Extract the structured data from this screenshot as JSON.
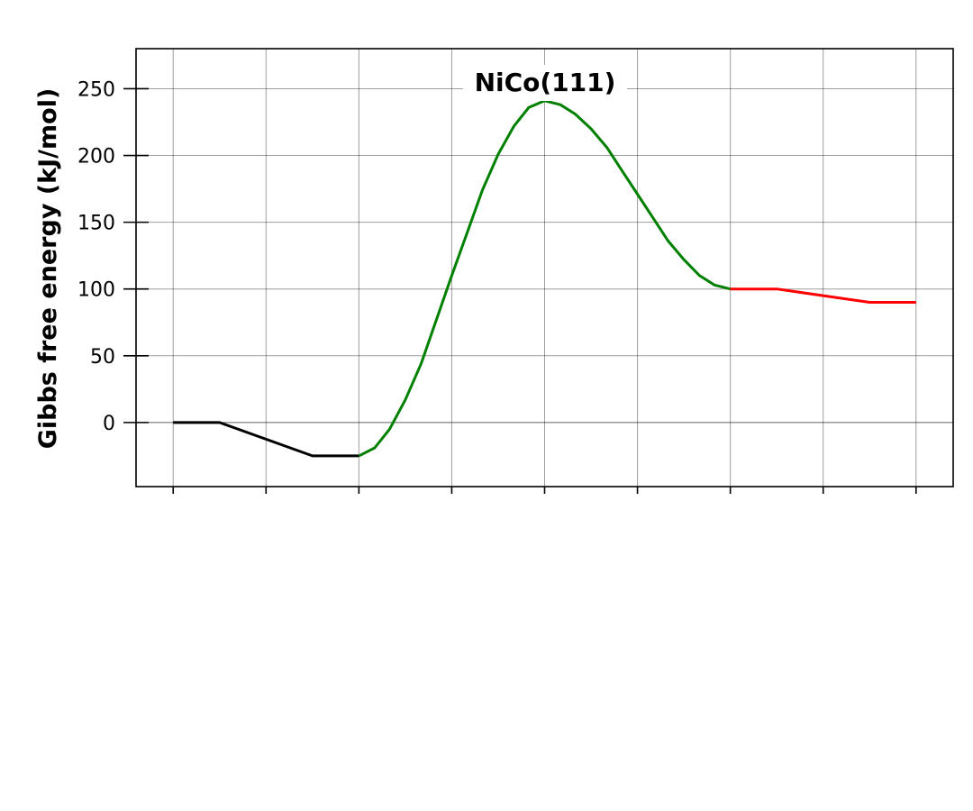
{
  "chart_data": {
    "type": "line",
    "title": "NiCo(111)",
    "xlabel": "",
    "ylabel": "Gibbs free energy (kJ/mol)",
    "ylim": [
      -48,
      280
    ],
    "xlim": [
      -0.4,
      8.4
    ],
    "yticks": [
      0,
      50,
      100,
      150,
      200,
      250
    ],
    "xticks": [
      0,
      1,
      2,
      3,
      4,
      5,
      6,
      7,
      8
    ],
    "grid": true,
    "series": [
      {
        "color": "#000000",
        "x": [
          0,
          0.5,
          1.5,
          2
        ],
        "y": [
          0,
          0,
          -25,
          -25
        ]
      },
      {
        "color": "#008000",
        "x": [
          2,
          2.17,
          2.33,
          2.5,
          2.67,
          2.83,
          3,
          3.17,
          3.33,
          3.5,
          3.67,
          3.83,
          4,
          4.17,
          4.33,
          4.5,
          4.67,
          4.83,
          5,
          5.17,
          5.33,
          5.5,
          5.67,
          5.83,
          6
        ],
        "y": [
          -25,
          -19,
          -5,
          17,
          44,
          76,
          110,
          143,
          174,
          201,
          222,
          236,
          241,
          238,
          231,
          220,
          206,
          189,
          171,
          153,
          136,
          122,
          110,
          103,
          100
        ]
      },
      {
        "color": "#ff0000",
        "x": [
          6,
          6.5,
          7,
          7.5,
          8
        ],
        "y": [
          100,
          100,
          95,
          90,
          90
        ]
      }
    ]
  }
}
